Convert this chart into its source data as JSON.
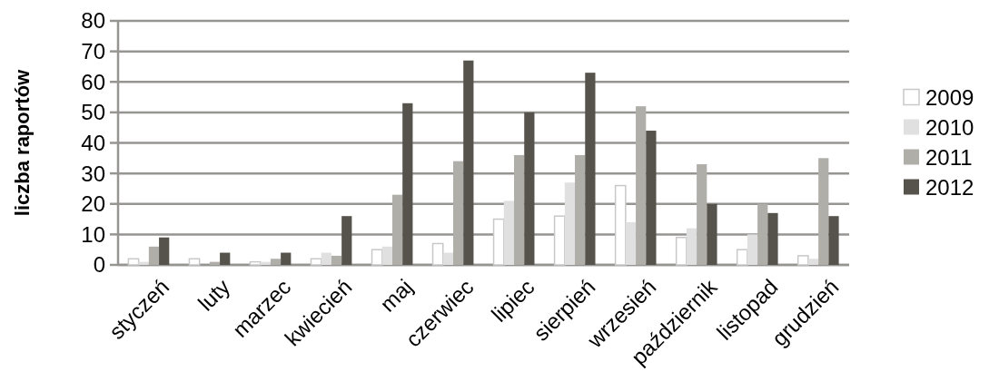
{
  "chart_data": {
    "type": "bar",
    "ylabel": "liczba raportów",
    "categories": [
      "styczeń",
      "luty",
      "marzec",
      "kwiecień",
      "maj",
      "czerwiec",
      "lipiec",
      "sierpień",
      "wrzesień",
      "październik",
      "listopad",
      "grudzień"
    ],
    "series": [
      {
        "name": "2009",
        "color": "#ffffff",
        "values": [
          2,
          2,
          1,
          2,
          5,
          7,
          15,
          16,
          26,
          9,
          5,
          3
        ]
      },
      {
        "name": "2010",
        "color": "#e0e0e0",
        "values": [
          1,
          0,
          1,
          4,
          6,
          4,
          21,
          27,
          14,
          12,
          10,
          2
        ]
      },
      {
        "name": "2011",
        "color": "#b0aea9",
        "values": [
          6,
          1,
          2,
          3,
          23,
          34,
          36,
          36,
          52,
          33,
          20,
          35
        ]
      },
      {
        "name": "2012",
        "color": "#56524c",
        "values": [
          9,
          4,
          4,
          16,
          53,
          67,
          50,
          63,
          44,
          20,
          17,
          16
        ]
      }
    ],
    "ylim": [
      0,
      80
    ],
    "yticks": [
      0,
      10,
      20,
      30,
      40,
      50,
      60,
      70,
      80
    ],
    "grid": "y",
    "legend": "right"
  }
}
